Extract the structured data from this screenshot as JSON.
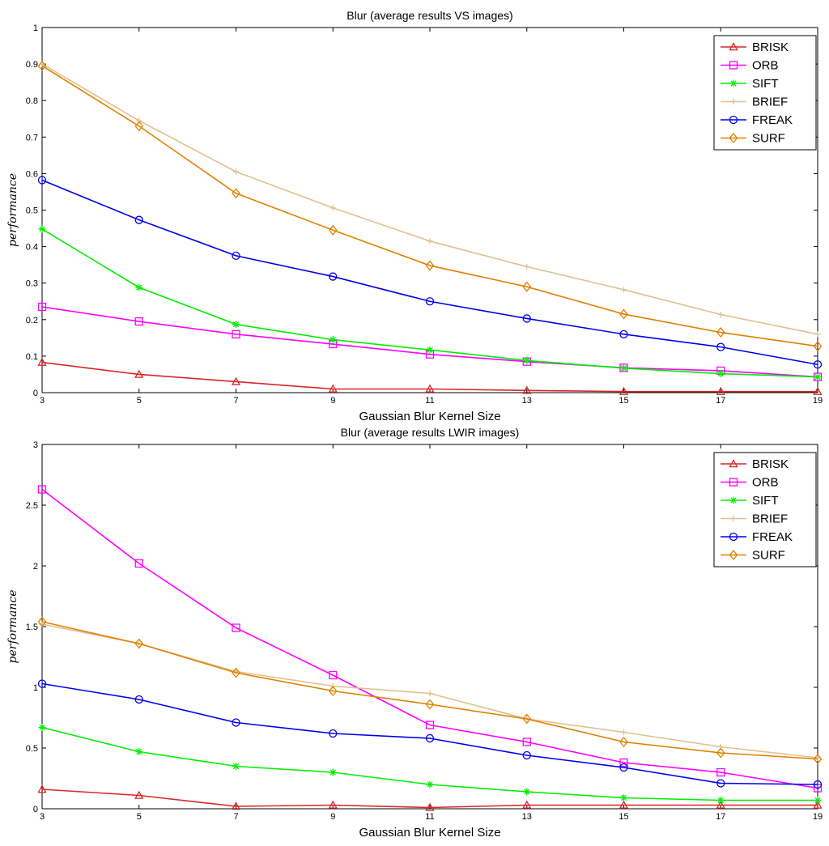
{
  "chart_data": [
    {
      "type": "line",
      "title": "Blur (average results VS images)",
      "xlabel": "Gaussian Blur Kernel Size",
      "ylabel": "performance",
      "x": [
        3,
        5,
        7,
        9,
        11,
        13,
        15,
        17,
        19
      ],
      "xticks": [
        "3",
        "5",
        "7",
        "9",
        "11",
        "13",
        "15",
        "17",
        "19"
      ],
      "xlim": [
        3,
        19
      ],
      "ylim": [
        0,
        1
      ],
      "yticks": [
        "0",
        "0.1",
        "0.2",
        "0.3",
        "0.4",
        "0.5",
        "0.6",
        "0.7",
        "0.8",
        "0.9",
        "1"
      ],
      "legend": "top-right",
      "grid": false,
      "series": [
        {
          "name": "BRISK",
          "color": "#d62728",
          "marker": "triangle",
          "values": [
            0.083,
            0.05,
            0.03,
            0.01,
            0.01,
            0.006,
            0.003,
            0.003,
            0.003
          ]
        },
        {
          "name": "ORB",
          "color": "#ff00ff",
          "marker": "square",
          "values": [
            0.235,
            0.195,
            0.16,
            0.133,
            0.105,
            0.085,
            0.068,
            0.06,
            0.043
          ]
        },
        {
          "name": "SIFT",
          "color": "#00ee00",
          "marker": "star",
          "values": [
            0.448,
            0.288,
            0.187,
            0.145,
            0.117,
            0.088,
            0.067,
            0.052,
            0.043
          ]
        },
        {
          "name": "BRIEF",
          "color": "#e0c090",
          "marker": "plus",
          "values": [
            0.9,
            0.745,
            0.605,
            0.506,
            0.415,
            0.345,
            0.282,
            0.214,
            0.16
          ]
        },
        {
          "name": "FREAK",
          "color": "#0000ee",
          "marker": "circle",
          "values": [
            0.582,
            0.473,
            0.375,
            0.318,
            0.25,
            0.203,
            0.16,
            0.125,
            0.077
          ]
        },
        {
          "name": "SURF",
          "color": "#e08000",
          "marker": "diamond",
          "values": [
            0.895,
            0.73,
            0.546,
            0.445,
            0.348,
            0.29,
            0.215,
            0.165,
            0.127
          ]
        }
      ]
    },
    {
      "type": "line",
      "title": "Blur (average results LWIR images)",
      "xlabel": "Gaussian Blur Kernel Size",
      "ylabel": "performance",
      "x": [
        3,
        5,
        7,
        9,
        11,
        13,
        15,
        17,
        19
      ],
      "xticks": [
        "3",
        "5",
        "7",
        "9",
        "11",
        "13",
        "15",
        "17",
        "19"
      ],
      "xlim": [
        3,
        19
      ],
      "ylim": [
        0,
        3
      ],
      "yticks": [
        "0",
        "0.5",
        "1",
        "1.5",
        "2",
        "2.5",
        "3"
      ],
      "legend": "top-right",
      "grid": false,
      "series": [
        {
          "name": "BRISK",
          "color": "#d62728",
          "marker": "triangle",
          "values": [
            0.16,
            0.11,
            0.02,
            0.03,
            0.01,
            0.03,
            0.03,
            0.03,
            0.03
          ]
        },
        {
          "name": "ORB",
          "color": "#ff00ff",
          "marker": "square",
          "values": [
            2.63,
            2.02,
            1.49,
            1.1,
            0.69,
            0.55,
            0.38,
            0.3,
            0.17
          ]
        },
        {
          "name": "SIFT",
          "color": "#00ee00",
          "marker": "star",
          "values": [
            0.67,
            0.47,
            0.35,
            0.3,
            0.2,
            0.14,
            0.09,
            0.07,
            0.07
          ]
        },
        {
          "name": "BRIEF",
          "color": "#e0c090",
          "marker": "plus",
          "values": [
            1.52,
            1.36,
            1.13,
            1.01,
            0.95,
            0.74,
            0.63,
            0.51,
            0.42
          ]
        },
        {
          "name": "FREAK",
          "color": "#0000ee",
          "marker": "circle",
          "values": [
            1.03,
            0.9,
            0.71,
            0.62,
            0.58,
            0.44,
            0.34,
            0.21,
            0.2
          ]
        },
        {
          "name": "SURF",
          "color": "#e08000",
          "marker": "diamond",
          "values": [
            1.54,
            1.36,
            1.12,
            0.97,
            0.86,
            0.74,
            0.55,
            0.46,
            0.41
          ]
        }
      ]
    }
  ]
}
